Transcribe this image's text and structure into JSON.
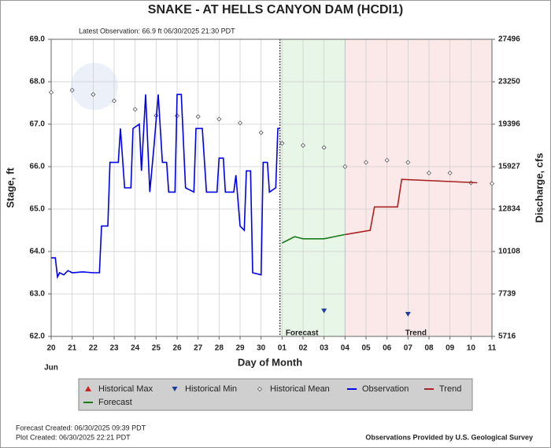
{
  "chart_data": {
    "type": "line",
    "title": "SNAKE - AT HELLS CANYON DAM  (HCDI1)",
    "subtitle": "Latest Observation: 66.9 ft 06/30/2025 21:30 PDT",
    "x_label": "Day of Month",
    "month_label": "Jun",
    "y_label": "Stage, ft",
    "y2_label": "Discharge, cfs",
    "xlim": [
      0,
      21
    ],
    "xticks": [
      {
        "value": 0,
        "label": "20"
      },
      {
        "value": 1,
        "label": "21"
      },
      {
        "value": 2,
        "label": "22"
      },
      {
        "value": 3,
        "label": "23"
      },
      {
        "value": 4,
        "label": "24"
      },
      {
        "value": 5,
        "label": "25"
      },
      {
        "value": 6,
        "label": "26"
      },
      {
        "value": 7,
        "label": "27"
      },
      {
        "value": 8,
        "label": "28"
      },
      {
        "value": 9,
        "label": "29"
      },
      {
        "value": 10,
        "label": "30"
      },
      {
        "value": 11,
        "label": "01"
      },
      {
        "value": 12,
        "label": "02"
      },
      {
        "value": 13,
        "label": "03"
      },
      {
        "value": 14,
        "label": "04"
      },
      {
        "value": 15,
        "label": "05"
      },
      {
        "value": 16,
        "label": "06"
      },
      {
        "value": 17,
        "label": "07"
      },
      {
        "value": 18,
        "label": "08"
      },
      {
        "value": 19,
        "label": "09"
      },
      {
        "value": 20,
        "label": "10"
      },
      {
        "value": 21,
        "label": "11"
      }
    ],
    "ylim": [
      62,
      69
    ],
    "yticks": [
      {
        "value": 62,
        "label": "62.0"
      },
      {
        "value": 63,
        "label": "63.0"
      },
      {
        "value": 64,
        "label": "64.0"
      },
      {
        "value": 65,
        "label": "65.0"
      },
      {
        "value": 66,
        "label": "66.0"
      },
      {
        "value": 67,
        "label": "67.0"
      },
      {
        "value": 68,
        "label": "68.0"
      },
      {
        "value": 69,
        "label": "69.0"
      }
    ],
    "y2ticks": [
      5716,
      7739,
      10108,
      12834,
      15927,
      19396,
      23250,
      27496
    ],
    "grid": true,
    "regions": [
      {
        "label": "Forecast",
        "start": 10.9,
        "end": 14,
        "color": "#e8f6e8"
      },
      {
        "label": "Trend",
        "start": 14,
        "end": 21,
        "color": "#fbe9e9"
      }
    ],
    "series": [
      {
        "name": "Historical Max",
        "color": "#cc2222",
        "marker": "triangle-up",
        "x": [],
        "values": []
      },
      {
        "name": "Historical Min",
        "color": "#1a3a9c",
        "marker": "triangle-down",
        "x": [
          13,
          17
        ],
        "values": [
          62.6,
          62.52
        ]
      },
      {
        "name": "Historical Mean",
        "color": "#555555",
        "marker": "diamond",
        "x": [
          0,
          1,
          2,
          3,
          4,
          5,
          6,
          7,
          8,
          9,
          10,
          11,
          12,
          13,
          14,
          15,
          16,
          17,
          18,
          19,
          20,
          21
        ],
        "values": [
          67.75,
          67.8,
          67.7,
          67.55,
          67.35,
          67.2,
          67.2,
          67.18,
          67.12,
          67.03,
          66.8,
          66.55,
          66.5,
          66.45,
          66.0,
          66.1,
          66.15,
          66.1,
          65.85,
          65.85,
          65.62,
          65.6
        ]
      },
      {
        "name": "Observation",
        "color": "#0000ee",
        "marker": "line",
        "x": [
          0,
          0.2,
          0.3,
          0.4,
          0.6,
          0.8,
          1.0,
          1.5,
          2.0,
          2.3,
          2.4,
          2.7,
          2.8,
          3.2,
          3.3,
          3.5,
          3.8,
          3.9,
          4.2,
          4.3,
          4.5,
          4.7,
          4.9,
          5.1,
          5.3,
          5.5,
          5.6,
          5.9,
          6.0,
          6.2,
          6.4,
          6.8,
          6.9,
          7.2,
          7.4,
          7.9,
          8.0,
          8.2,
          8.3,
          8.7,
          8.8,
          9.0,
          9.2,
          9.3,
          9.5,
          9.6,
          10.0,
          10.1,
          10.3,
          10.4,
          10.7,
          10.8,
          10.9
        ],
        "values": [
          63.85,
          63.85,
          63.4,
          63.5,
          63.45,
          63.55,
          63.5,
          63.52,
          63.5,
          63.5,
          64.6,
          64.6,
          66.1,
          66.1,
          66.9,
          65.5,
          65.5,
          66.9,
          67.0,
          65.9,
          67.7,
          65.4,
          66.5,
          67.7,
          66.1,
          66.1,
          65.4,
          65.4,
          67.7,
          67.7,
          65.5,
          65.4,
          66.9,
          66.9,
          65.4,
          65.4,
          66.2,
          66.2,
          65.4,
          65.4,
          65.8,
          64.6,
          64.5,
          65.9,
          65.9,
          63.5,
          63.45,
          66.1,
          66.1,
          65.4,
          65.5,
          66.9,
          66.9
        ]
      },
      {
        "name": "Trend",
        "color": "#aa2222",
        "marker": "line",
        "x": [
          14,
          15.2,
          15.4,
          16.5,
          16.7,
          20.3
        ],
        "values": [
          64.4,
          64.5,
          65.05,
          65.05,
          65.7,
          65.62
        ]
      },
      {
        "name": "Forecast",
        "color": "#1a7a1a",
        "marker": "line",
        "x": [
          11.0,
          11.2,
          11.6,
          12,
          13,
          14
        ],
        "values": [
          64.2,
          64.25,
          64.35,
          64.3,
          64.3,
          64.4
        ]
      }
    ],
    "footer_left": [
      "Forecast Created: 06/30/2025 09:39 PDT",
      "Plot Created: 06/30/2025 22:21 PDT"
    ],
    "footer_right": "Observations Provided by U.S. Geological Survey"
  }
}
